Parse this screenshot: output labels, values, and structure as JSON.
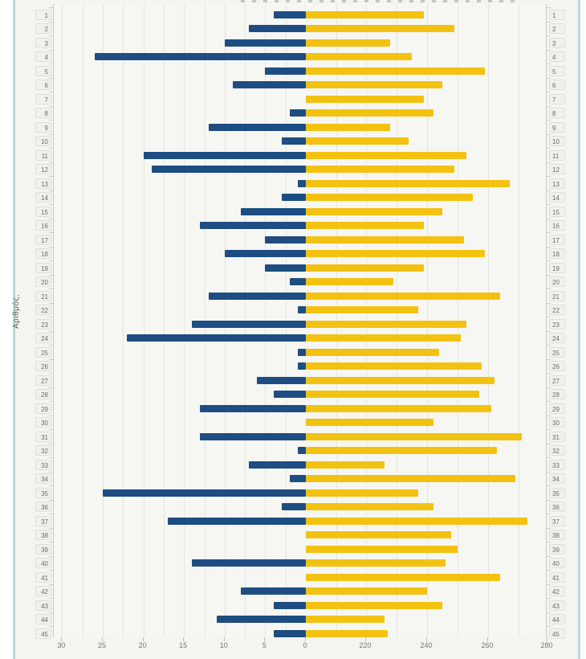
{
  "widget": {
    "name": "number-statistics-diverging-bar-chart",
    "background": "#f4f4f1",
    "edge_border_color": "#b7dbe0"
  },
  "chart_data": {
    "type": "bar",
    "orientation": "diverging-horizontal",
    "ylabel": "Αριθμός,",
    "grid": true,
    "legend": false,
    "categories": [
      1,
      2,
      3,
      4,
      5,
      6,
      7,
      8,
      9,
      10,
      11,
      12,
      13,
      14,
      15,
      16,
      17,
      18,
      19,
      20,
      21,
      22,
      23,
      24,
      25,
      26,
      27,
      28,
      29,
      30,
      31,
      32,
      33,
      34,
      35,
      36,
      37,
      38,
      39,
      40,
      41,
      42,
      43,
      44,
      45
    ],
    "series": [
      {
        "name": "blue-left-bars",
        "side": "left",
        "color": "#1d4d82",
        "axis_range": [
          0,
          30
        ],
        "values": [
          4,
          7,
          10,
          26,
          5,
          9,
          0,
          2,
          12,
          3,
          20,
          19,
          1,
          3,
          8,
          13,
          5,
          10,
          5,
          2,
          12,
          1,
          14,
          22,
          1,
          1,
          6,
          4,
          13,
          0,
          13,
          1,
          7,
          2,
          25,
          3,
          17,
          0,
          0,
          14,
          0,
          8,
          4,
          11,
          4
        ]
      },
      {
        "name": "yellow-right-bars",
        "side": "right",
        "color": "#f3c211",
        "axis_range": [
          220,
          280
        ],
        "values": [
          239,
          249,
          228,
          235,
          259,
          245,
          239,
          242,
          228,
          234,
          253,
          249,
          267,
          255,
          245,
          239,
          252,
          259,
          239,
          229,
          264,
          237,
          253,
          251,
          244,
          258,
          262,
          257,
          261,
          242,
          271,
          263,
          226,
          269,
          237,
          242,
          273,
          248,
          250,
          246,
          264,
          240,
          245,
          226,
          227
        ]
      }
    ],
    "x_axis_left": {
      "tick_labels": [
        "30",
        "25",
        "20",
        "15",
        "10",
        "5",
        "0"
      ],
      "tick_values": [
        30,
        25,
        20,
        15,
        10,
        5,
        0
      ]
    },
    "x_axis_right": {
      "tick_labels": [
        "220",
        "240",
        "260",
        "280"
      ],
      "tick_values": [
        220,
        240,
        260,
        280
      ],
      "note_visible_scale": "compressed: 0 then 220-280"
    }
  }
}
